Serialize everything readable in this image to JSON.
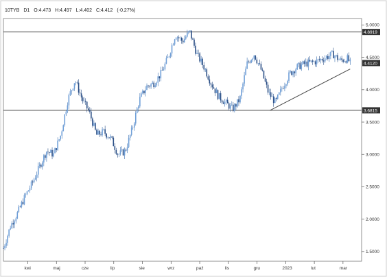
{
  "header": {
    "symbol": "10TYB",
    "timeframe": "D1",
    "open_label": "O:4.473",
    "high_label": "H:4.497",
    "low_label": "L:4.402",
    "close_label": "C:4.412",
    "change_label": "(-0.27%)"
  },
  "chart_data": {
    "type": "candlestick",
    "title": "",
    "xlabel": "",
    "ylabel": "",
    "ylim": [
      1.35,
      5.1
    ],
    "y_ticks": [
      {
        "value": 1.5,
        "label": "1.5000"
      },
      {
        "value": 2.0,
        "label": "2.0000"
      },
      {
        "value": 2.5,
        "label": "2.5000"
      },
      {
        "value": 3.0,
        "label": "3.0000"
      },
      {
        "value": 3.5,
        "label": "3.5000"
      },
      {
        "value": 4.0,
        "label": "4.0000"
      },
      {
        "value": 4.5,
        "label": "4.5000"
      },
      {
        "value": 5.0,
        "label": "5.0000"
      }
    ],
    "x_ticks": [
      "kwi",
      "maj",
      "cze",
      "lip",
      "sie",
      "wrz",
      "paź",
      "lis",
      "gru",
      "2023",
      "lut",
      "mar"
    ],
    "level_lines": [
      {
        "value": 4.8919,
        "label": "4.8919"
      },
      {
        "value": 3.6815,
        "label": "3.6815"
      }
    ],
    "current_price": {
      "value": 4.412,
      "label": "4.4120"
    },
    "trendline": {
      "start": [
        9.3,
        3.68
      ],
      "end": [
        12.1,
        4.32
      ]
    },
    "series": [
      {
        "x": [
          0,
          0.25,
          0.5,
          0.75,
          1,
          1.25,
          1.5,
          1.75,
          2,
          2.25,
          2.5,
          2.75,
          3,
          3.25,
          3.5,
          3.75,
          4,
          4.25,
          4.5,
          4.75,
          5,
          5.25,
          5.5,
          5.75,
          6,
          6.25,
          6.5,
          6.75,
          7,
          7.25,
          7.5,
          7.75,
          8,
          8.25,
          8.5,
          8.75,
          9,
          9.25,
          9.5,
          9.75,
          10,
          10.25,
          10.5,
          10.75,
          11,
          11.25,
          11.5,
          11.75,
          12,
          12.1
        ],
        "values": [
          1.55,
          1.9,
          2.1,
          2.35,
          2.55,
          2.8,
          3.05,
          3.0,
          3.3,
          3.85,
          4.15,
          3.85,
          3.65,
          3.3,
          3.35,
          3.25,
          3.0,
          3.05,
          3.4,
          3.85,
          4.05,
          4.1,
          4.25,
          4.5,
          4.85,
          4.75,
          4.9,
          4.55,
          4.35,
          4.1,
          3.9,
          3.8,
          3.7,
          3.85,
          4.4,
          4.55,
          4.3,
          3.95,
          3.8,
          4.05,
          4.25,
          4.35,
          4.4,
          4.42,
          4.45,
          4.5,
          4.55,
          4.45,
          4.48,
          4.41
        ]
      }
    ],
    "grid": false,
    "legend": "none"
  }
}
